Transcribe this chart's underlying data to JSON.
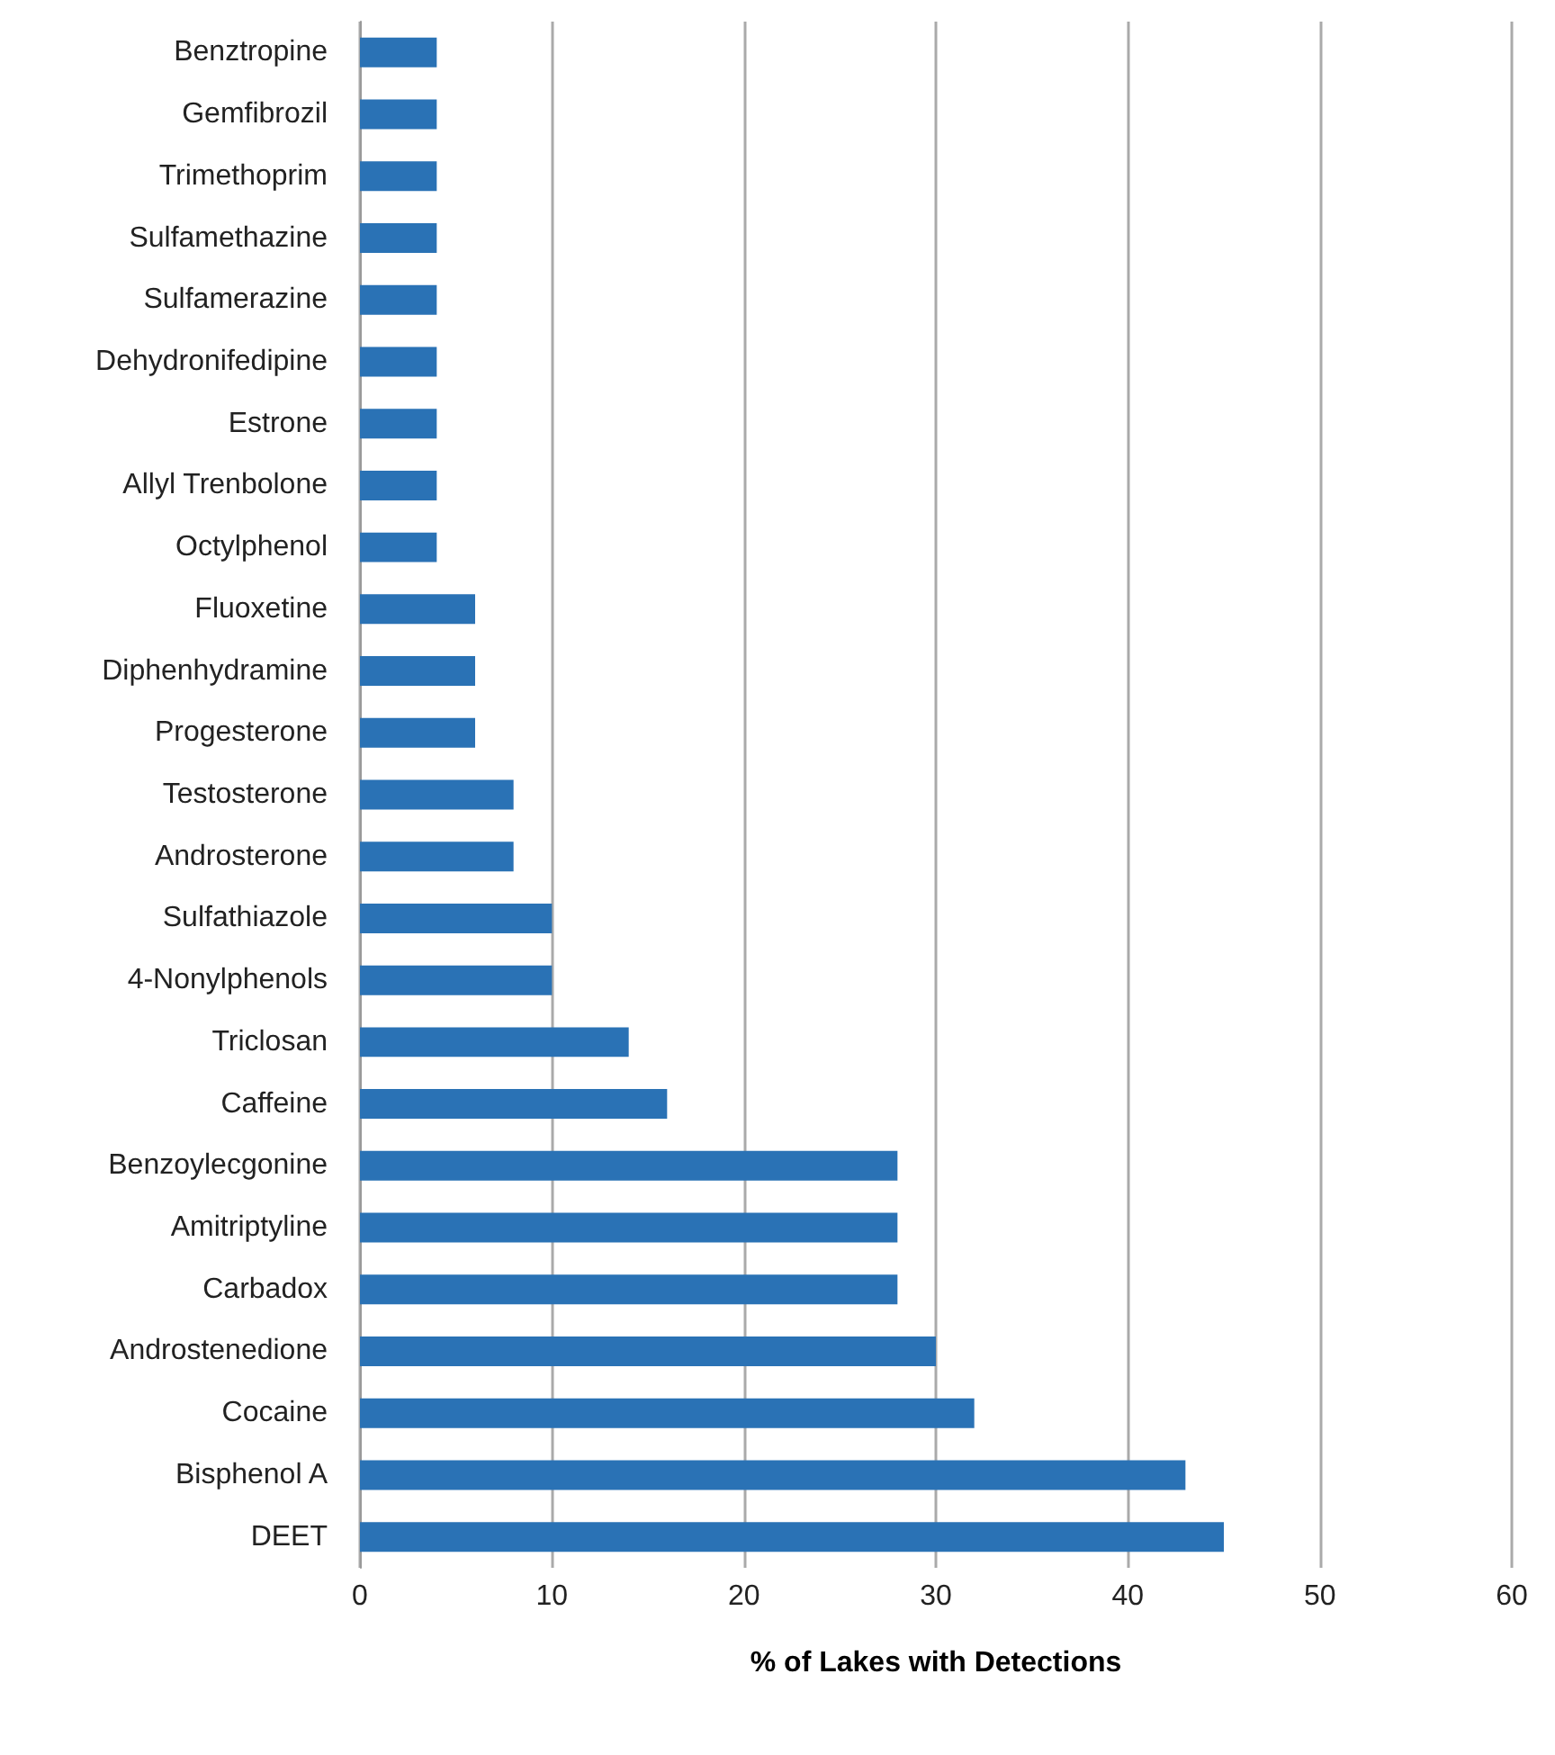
{
  "chart_data": {
    "type": "bar",
    "orientation": "horizontal",
    "xlabel": "% of Lakes with Detections",
    "categories": [
      "Benztropine",
      "Gemfibrozil",
      "Trimethoprim",
      "Sulfamethazine",
      "Sulfamerazine",
      "Dehydronifedipine",
      "Estrone",
      "Allyl Trenbolone",
      "Octylphenol",
      "Fluoxetine",
      "Diphenhydramine",
      "Progesterone",
      "Testosterone",
      "Androsterone",
      "Sulfathiazole",
      "4-Nonylphenols",
      "Triclosan",
      "Caffeine",
      "Benzoylecgonine",
      "Amitriptyline",
      "Carbadox",
      "Androstenedione",
      "Cocaine",
      "Bisphenol A",
      "DEET"
    ],
    "values": [
      4,
      4,
      4,
      4,
      4,
      4,
      4,
      4,
      4,
      6,
      6,
      6,
      8,
      8,
      10,
      10,
      14,
      16,
      28,
      28,
      28,
      30,
      32,
      43,
      45
    ],
    "color": "#2a72b5",
    "xlim": [
      0,
      60
    ],
    "xticks": [
      0,
      10,
      20,
      30,
      40,
      50,
      60
    ],
    "grid": "x"
  }
}
